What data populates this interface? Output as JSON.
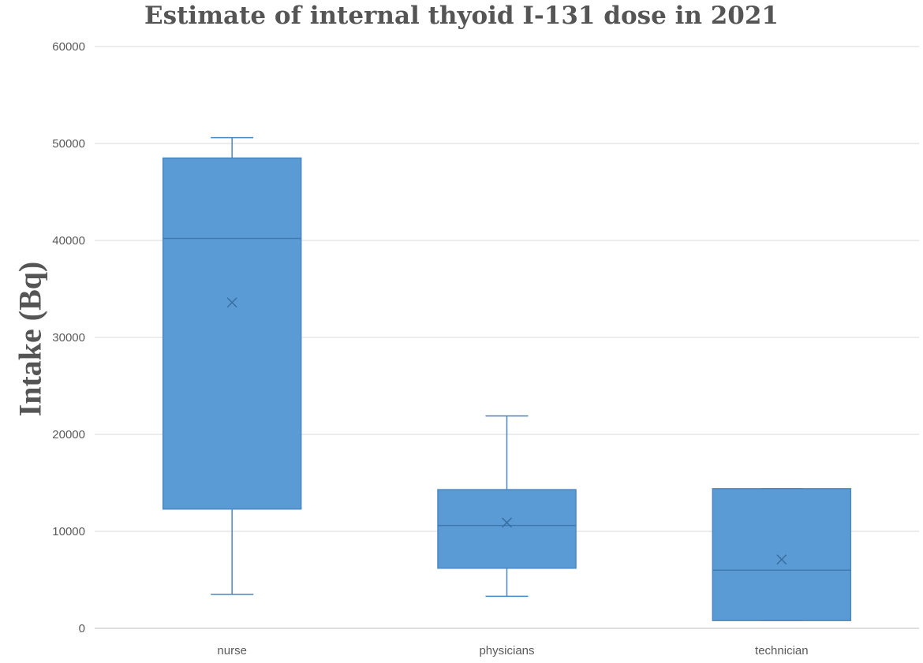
{
  "chart_data": {
    "type": "box",
    "title": "Estimate of internal thyoid I-131 dose in 2021",
    "xlabel": "",
    "ylabel": "Intake (Bq)",
    "ylim": [
      0,
      60000
    ],
    "yticks": [
      "0",
      "10000",
      "20000",
      "30000",
      "40000",
      "50000",
      "60000"
    ],
    "grid": true,
    "categories": [
      "nurse",
      "physicians",
      "technician"
    ],
    "boxes": [
      {
        "category": "nurse",
        "min": 3500,
        "q1": 12300,
        "median": 40200,
        "q3": 48500,
        "max": 50600,
        "mean": 33600
      },
      {
        "category": "physicians",
        "min": 3300,
        "q1": 6200,
        "median": 10600,
        "q3": 14300,
        "max": 21900,
        "mean": 10900
      },
      {
        "category": "technician",
        "min": 800,
        "q1": 800,
        "median": 6000,
        "q3": 14400,
        "max": 14400,
        "mean": 7100
      }
    ],
    "colors": {
      "box": "#5b9bd5",
      "edge": "#4a86c0",
      "grid": "#d9d9d9",
      "axis": "#bfbfbf"
    }
  }
}
